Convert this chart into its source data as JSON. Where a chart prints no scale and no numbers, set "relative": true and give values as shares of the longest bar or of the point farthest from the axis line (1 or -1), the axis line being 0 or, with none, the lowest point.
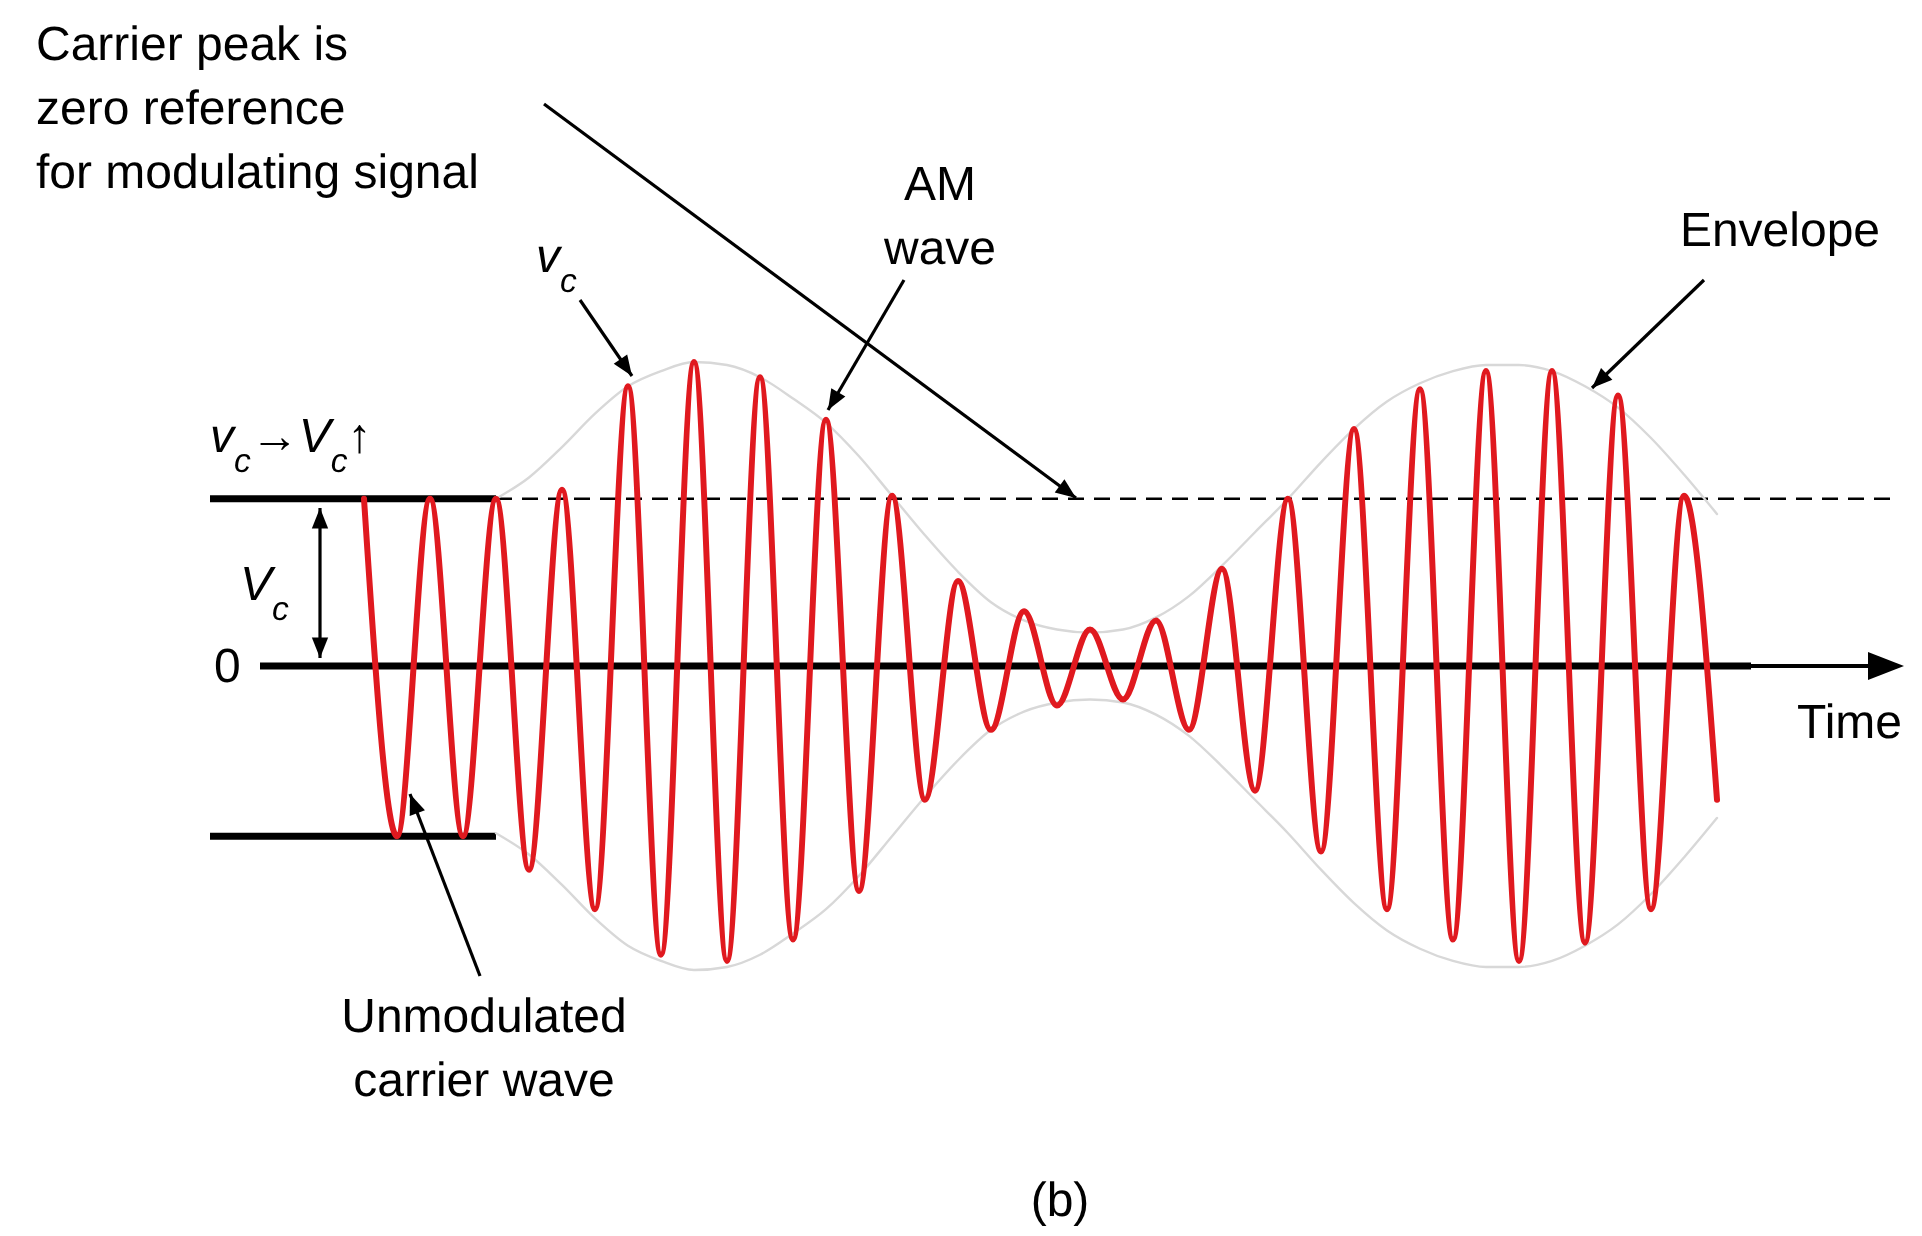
{
  "chart_data": {
    "type": "line",
    "relative": true,
    "xlabel": "Time",
    "categories": [
      null,
      null,
      null,
      null,
      null,
      null,
      null,
      null,
      null,
      null,
      null,
      null,
      null,
      null,
      null,
      null,
      null,
      null,
      null,
      null,
      null,
      null,
      null,
      null,
      null,
      null,
      null,
      null,
      null,
      null,
      null,
      null,
      null,
      null,
      null,
      null,
      null,
      null,
      null,
      null,
      null,
      null
    ],
    "series": [
      {
        "color": "#d8d8d8",
        "values": [
          null,
          null,
          null,
          null,
          0.55,
          0.62,
          0.72,
          0.83,
          0.92,
          0.97,
          1,
          0.99,
          0.95,
          0.88,
          0.8,
          0.69,
          0.56,
          0.43,
          0.31,
          0.21,
          0.15,
          0.12,
          0.11,
          0.12,
          0.16,
          0.23,
          0.33,
          0.44,
          0.55,
          0.67,
          0.78,
          0.87,
          0.93,
          0.97,
          0.99,
          0.99,
          0.97,
          0.92,
          0.85,
          0.75,
          0.63,
          0.5
        ]
      },
      {
        "color": "#d8d8d8",
        "values": [
          null,
          null,
          null,
          null,
          -0.55,
          -0.62,
          -0.72,
          -0.83,
          -0.92,
          -0.97,
          -1,
          -0.99,
          -0.95,
          -0.88,
          -0.8,
          -0.69,
          -0.56,
          -0.43,
          -0.31,
          -0.21,
          -0.15,
          -0.12,
          -0.11,
          -0.12,
          -0.16,
          -0.23,
          -0.33,
          -0.44,
          -0.55,
          -0.67,
          -0.78,
          -0.87,
          -0.93,
          -0.97,
          -0.99,
          -0.99,
          -0.97,
          -0.92,
          -0.85,
          -0.75,
          -0.63,
          -0.5
        ]
      },
      {
        "color": "#e0191f",
        "values": [
          0.55,
          -0.56,
          0.55,
          -0.56,
          0.55,
          -0.67,
          0.58,
          -0.8,
          0.92,
          -0.95,
          1,
          -0.97,
          0.95,
          -0.9,
          0.81,
          -0.74,
          0.56,
          -0.44,
          0.28,
          -0.21,
          0.18,
          -0.13,
          0.12,
          -0.11,
          0.15,
          -0.21,
          0.32,
          -0.41,
          0.55,
          -0.61,
          0.78,
          -0.8,
          0.91,
          -0.9,
          0.97,
          -0.97,
          0.97,
          -0.91,
          0.89,
          -0.8,
          0.56,
          -0.44
        ]
      }
    ],
    "ref_lines": [
      {
        "axis": "y",
        "value": 0.55,
        "line_style": "solid"
      },
      {
        "axis": "y",
        "value": 0.55,
        "line_style": "dashed"
      },
      {
        "axis": "y",
        "value": -0.56,
        "line_style": "solid"
      }
    ],
    "annotations": [
      "Carrier peak is\nzero reference\nfor modulating signal",
      "AM\nwave",
      "v$_{c}$",
      "v$_{c}$→V$_{c}$↑",
      "V$_{c}$",
      "0",
      "Envelope",
      "Unmodulated\ncarrier wave",
      "(b)"
    ]
  }
}
